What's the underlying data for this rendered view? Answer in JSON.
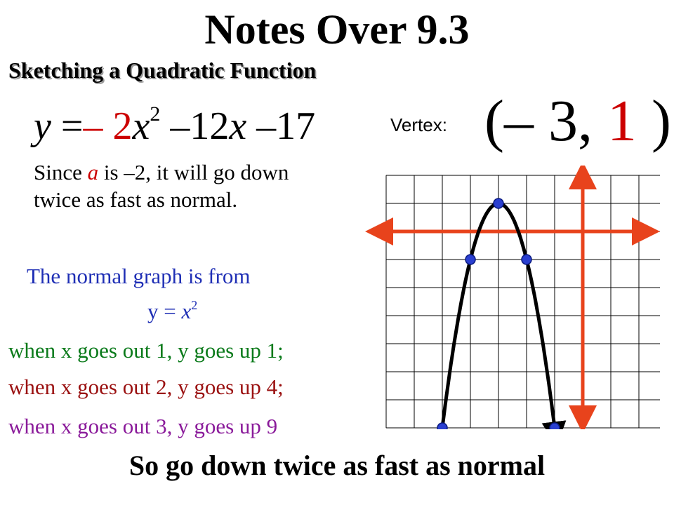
{
  "title": "Notes Over 9.3",
  "subtitle": "Sketching a Quadratic Function",
  "equation": {
    "lhs": "y",
    "equals": "=",
    "a_coefficient": "– 2",
    "x": "x",
    "exponent": "2",
    "rest": " –12",
    "x2": "x",
    "constant": " –17"
  },
  "vertex": {
    "label": "Vertex:",
    "open": "(",
    "x": "– 3, ",
    "y": "1",
    "close": " )"
  },
  "explanation": {
    "prefix": "Since ",
    "a_var": "a",
    "suffix": " is –2, it will go down twice as fast as normal."
  },
  "normal_graph": {
    "line1": "The normal graph is from",
    "y_eq": "y = ",
    "x": "x",
    "exp": "2"
  },
  "rules": {
    "line1": "when x goes out 1, y goes up 1;",
    "line2": "when x goes out 2, y goes up 4;",
    "line3": "when x goes out 3, y goes up 9"
  },
  "conclusion": "So go down twice as fast as normal",
  "colors": {
    "axis": "#e8431c",
    "curve": "#000000",
    "point": "#2a3fd0",
    "grid": "#000000"
  },
  "graph_points": [
    {
      "x": -3,
      "y": 1
    },
    {
      "x": -4,
      "y": -1
    },
    {
      "x": -2,
      "y": -1
    },
    {
      "x": -5,
      "y": -7
    },
    {
      "x": -1,
      "y": -7
    }
  ]
}
